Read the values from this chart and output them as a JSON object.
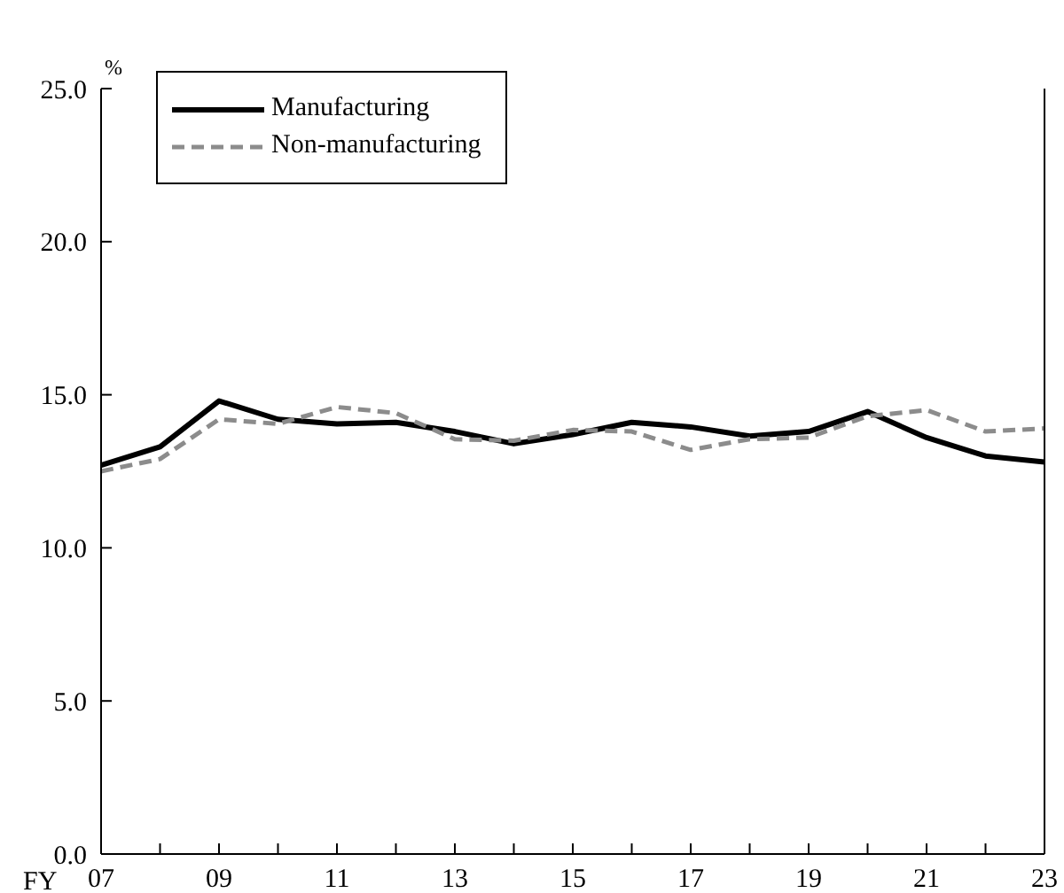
{
  "chart_data": {
    "type": "line",
    "xlabel": "FY",
    "ylabel": "%",
    "x": [
      7,
      8,
      9,
      10,
      11,
      12,
      13,
      14,
      15,
      16,
      17,
      18,
      19,
      20,
      21,
      22,
      23
    ],
    "series": [
      {
        "name": "Manufacturing",
        "color": "#000000",
        "line_style": "solid",
        "values": [
          12.7,
          13.3,
          14.8,
          14.2,
          14.05,
          14.1,
          13.8,
          13.4,
          13.7,
          14.1,
          13.95,
          13.65,
          13.8,
          14.45,
          13.6,
          13.0,
          12.8
        ]
      },
      {
        "name": "Non-manufacturing",
        "color": "#8c8c8c",
        "line_style": "dashed",
        "values": [
          12.5,
          12.9,
          14.2,
          14.05,
          14.6,
          14.4,
          13.55,
          13.5,
          13.85,
          13.8,
          13.2,
          13.55,
          13.6,
          14.3,
          14.5,
          13.8,
          13.9
        ]
      }
    ],
    "xlim": [
      7,
      23
    ],
    "xticks": [
      {
        "value": 7,
        "label": "07"
      },
      {
        "value": 8,
        "label": null
      },
      {
        "value": 9,
        "label": "09"
      },
      {
        "value": 10,
        "label": null
      },
      {
        "value": 11,
        "label": "11"
      },
      {
        "value": 12,
        "label": null
      },
      {
        "value": 13,
        "label": "13"
      },
      {
        "value": 14,
        "label": null
      },
      {
        "value": 15,
        "label": "15"
      },
      {
        "value": 16,
        "label": null
      },
      {
        "value": 17,
        "label": "17"
      },
      {
        "value": 18,
        "label": null
      },
      {
        "value": 19,
        "label": "19"
      },
      {
        "value": 20,
        "label": null
      },
      {
        "value": 21,
        "label": "21"
      },
      {
        "value": 22,
        "label": null
      },
      {
        "value": 23,
        "label": "23"
      }
    ],
    "ylim": [
      0,
      25
    ],
    "yticks": [
      {
        "value": 0,
        "label": "0.0"
      },
      {
        "value": 5,
        "label": "5.0"
      },
      {
        "value": 10,
        "label": "10.0"
      },
      {
        "value": 15,
        "label": "15.0"
      },
      {
        "value": 20,
        "label": "20.0"
      },
      {
        "value": 25,
        "label": "25.0"
      }
    ],
    "grid": false,
    "legend": "top left",
    "marker": "none"
  }
}
